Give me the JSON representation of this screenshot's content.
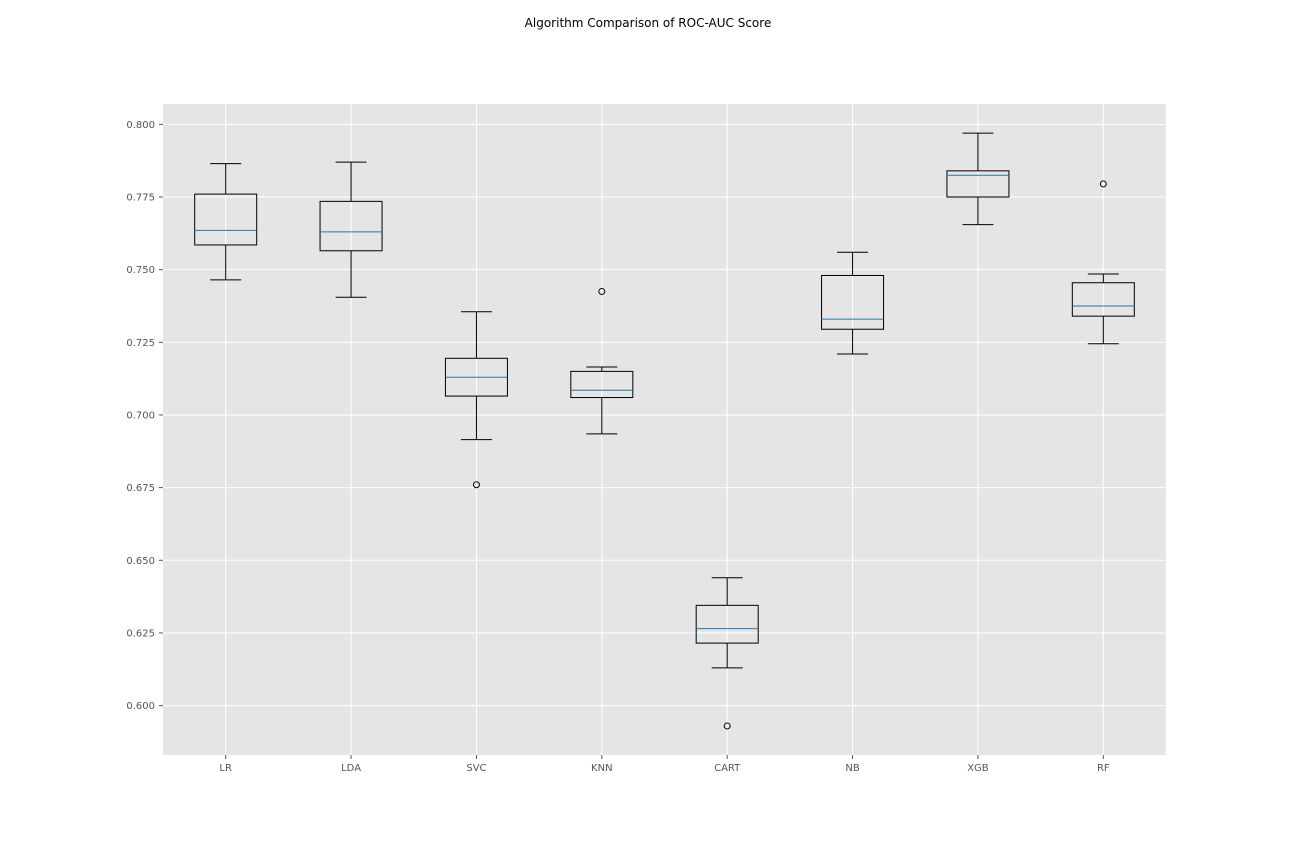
{
  "chart_data": {
    "type": "boxplot",
    "title": "Algorithm Comparison of ROC-AUC Score",
    "xlabel": "",
    "ylabel": "",
    "ylim": [
      0.583,
      0.807
    ],
    "yticks": [
      "0.600",
      "0.625",
      "0.650",
      "0.675",
      "0.700",
      "0.725",
      "0.750",
      "0.775",
      "0.800"
    ],
    "grid": true,
    "categories": [
      "LR",
      "LDA",
      "SVC",
      "KNN",
      "CART",
      "NB",
      "XGB",
      "RF"
    ],
    "boxes": [
      {
        "label": "LR",
        "whisker_low": 0.7465,
        "q1": 0.7585,
        "median": 0.7635,
        "q3": 0.776,
        "whisker_high": 0.7865,
        "outliers": []
      },
      {
        "label": "LDA",
        "whisker_low": 0.7405,
        "q1": 0.7565,
        "median": 0.763,
        "q3": 0.7735,
        "whisker_high": 0.787,
        "outliers": []
      },
      {
        "label": "SVC",
        "whisker_low": 0.6915,
        "q1": 0.7065,
        "median": 0.713,
        "q3": 0.7195,
        "whisker_high": 0.7355,
        "outliers": [
          0.676
        ]
      },
      {
        "label": "KNN",
        "whisker_low": 0.6935,
        "q1": 0.706,
        "median": 0.7085,
        "q3": 0.715,
        "whisker_high": 0.7165,
        "outliers": [
          0.7425
        ]
      },
      {
        "label": "CART",
        "whisker_low": 0.613,
        "q1": 0.6215,
        "median": 0.6265,
        "q3": 0.6345,
        "whisker_high": 0.644,
        "outliers": [
          0.593
        ]
      },
      {
        "label": "NB",
        "whisker_low": 0.721,
        "q1": 0.7295,
        "median": 0.733,
        "q3": 0.748,
        "whisker_high": 0.756,
        "outliers": []
      },
      {
        "label": "XGB",
        "whisker_low": 0.7655,
        "q1": 0.775,
        "median": 0.7825,
        "q3": 0.784,
        "whisker_high": 0.797,
        "outliers": []
      },
      {
        "label": "RF",
        "whisker_low": 0.7245,
        "q1": 0.734,
        "median": 0.7375,
        "q3": 0.7455,
        "whisker_high": 0.7485,
        "outliers": [
          0.7795
        ]
      }
    ]
  },
  "colors": {
    "plot_background": "#e5e5e5",
    "grid": "#ffffff",
    "box": "#000000",
    "median": "#1f77b4",
    "tick_text": "#555555"
  }
}
